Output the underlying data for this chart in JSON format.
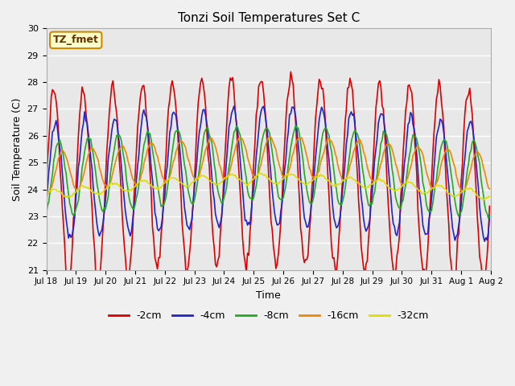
{
  "title": "Tonzi Soil Temperatures Set C",
  "xlabel": "Time",
  "ylabel": "Soil Temperature (C)",
  "ylim": [
    21.0,
    30.0
  ],
  "yticks": [
    21.0,
    22.0,
    23.0,
    24.0,
    25.0,
    26.0,
    27.0,
    28.0,
    29.0,
    30.0
  ],
  "legend_labels": [
    "-2cm",
    "-4cm",
    "-8cm",
    "-16cm",
    "-32cm"
  ],
  "legend_colors": [
    "#dd0000",
    "#2222cc",
    "#22aa22",
    "#ee8800",
    "#dddd00"
  ],
  "annotation_text": "TZ_fmet",
  "annotation_bg": "#ffffcc",
  "annotation_border": "#cc8800",
  "plot_bg": "#e8e8e8",
  "fig_bg": "#f0f0f0",
  "n_days": 15,
  "pts_per_day": 24,
  "xtick_labels": [
    "Jul 18",
    "Jul 19",
    "Jul 20",
    "Jul 21",
    "Jul 22",
    "Jul 23",
    "Jul 24",
    "Jul 25",
    "Jul 26",
    "Jul 27",
    "Jul 28",
    "Jul 29",
    "Jul 30",
    "Jul 31",
    "Aug 1",
    "Aug 2"
  ]
}
